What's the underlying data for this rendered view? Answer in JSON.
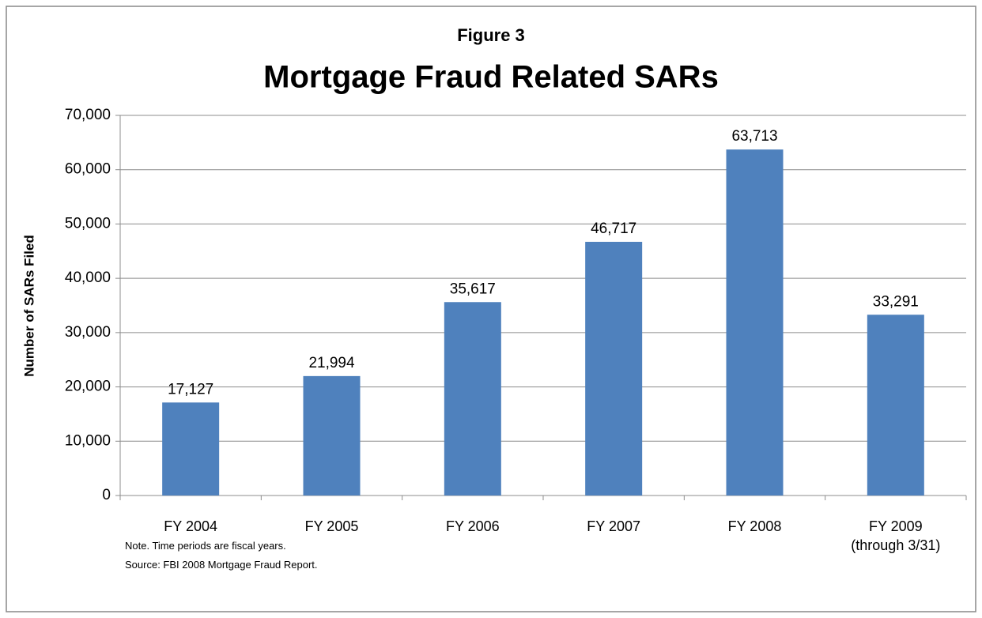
{
  "chart_data": {
    "type": "bar",
    "subtitle": "Figure 3",
    "title": "Mortgage Fraud Related SARs",
    "y_label": "Number of SARs Filed",
    "categories": [
      "FY 2004",
      "FY 2005",
      "FY 2006",
      "FY 2007",
      "FY 2008",
      "FY 2009\n(through 3/31)"
    ],
    "values": [
      17127,
      21994,
      35617,
      46717,
      63713,
      33291
    ],
    "value_labels": [
      "17,127",
      "21,994",
      "35,617",
      "46,717",
      "63,713",
      "33,291"
    ],
    "color": "#4f81bd",
    "ylim": [
      0,
      70000
    ],
    "yticks": [
      0,
      {
        "value": 10000,
        "label": "10,000"
      },
      {
        "value": 20000,
        "label": "20,000"
      },
      {
        "value": 30000,
        "label": "30,000"
      },
      {
        "value": 40000,
        "label": "40,000"
      },
      {
        "value": 50000,
        "label": "50,000"
      },
      {
        "value": 60000,
        "label": "60,000"
      },
      {
        "value": 70000,
        "label": "70,000"
      }
    ],
    "grid": true,
    "note": "Note. Time periods are fiscal years.",
    "source": "Source: FBI 2008 Mortgage Fraud Report."
  }
}
